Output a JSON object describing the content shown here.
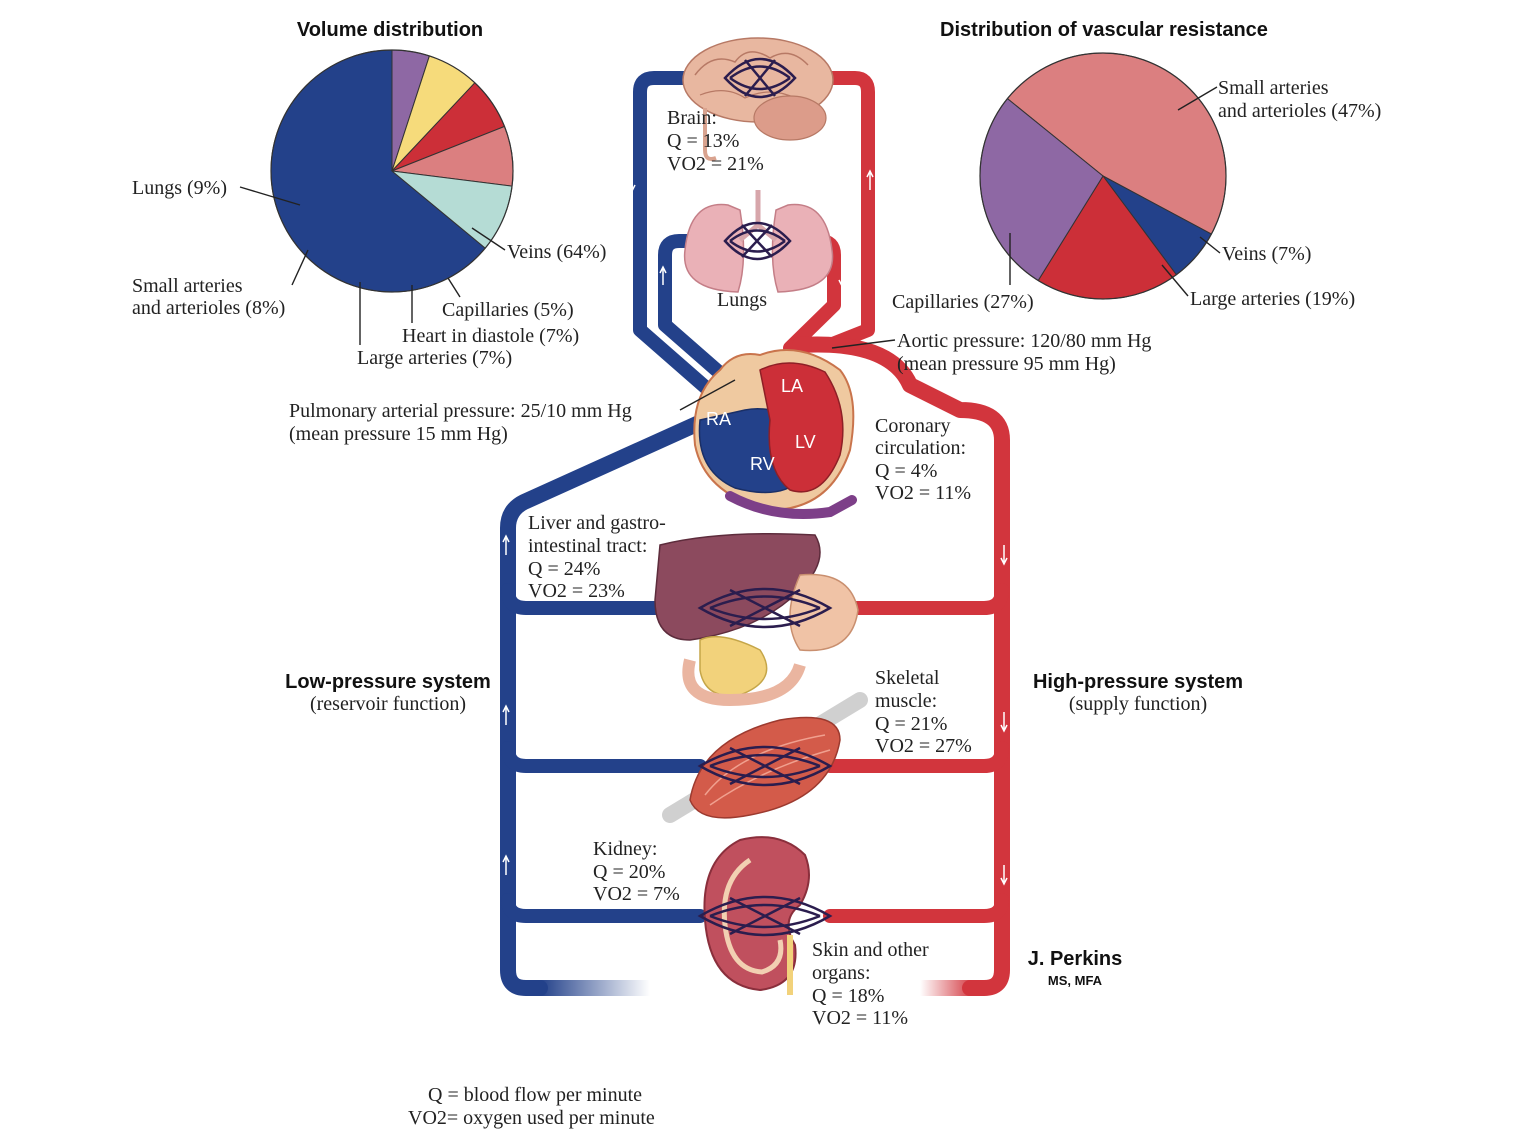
{
  "colors": {
    "vein": "#23418a",
    "artery": "#d2353d",
    "veins_slice": "#23418a",
    "lungs_slice": "#b5dcd5",
    "small_arteries_slice": "#db7f80",
    "large_arteries_slice": "#cc2f38",
    "heart_slice": "#f6db7b",
    "capillaries_slice": "#8e68a4"
  },
  "chart_data": [
    {
      "type": "pie",
      "title": "Volume distribution",
      "slices": [
        {
          "label": "Veins (64%)",
          "value": 64,
          "color": "#23418a"
        },
        {
          "label": "Lungs (9%)",
          "value": 9,
          "color": "#b5dcd5"
        },
        {
          "label": "Small arteries and arterioles (8%)",
          "value": 8,
          "color": "#db7f80"
        },
        {
          "label": "Large arteries (7%)",
          "value": 7,
          "color": "#cc2f38"
        },
        {
          "label": "Heart in diastole (7%)",
          "value": 7,
          "color": "#f6db7b"
        },
        {
          "label": "Capillaries (5%)",
          "value": 5,
          "color": "#8e68a4"
        }
      ]
    },
    {
      "type": "pie",
      "title": "Distribution of vascular resistance",
      "slices": [
        {
          "label": "Small arteries and arterioles (47%)",
          "value": 47,
          "color": "#db7f80"
        },
        {
          "label": "Veins (7%)",
          "value": 7,
          "color": "#23418a"
        },
        {
          "label": "Large arteries (19%)",
          "value": 19,
          "color": "#cc2f38"
        },
        {
          "label": "Capillaries (27%)",
          "value": 27,
          "color": "#8e68a4"
        }
      ]
    }
  ],
  "volume_pie": {
    "title": "Volume distribution",
    "labels": {
      "veins": "Veins  (64%)",
      "lungs": "Lungs (9%)",
      "small_arteries_1": "Small arteries",
      "small_arteries_2": "and arterioles (8%)",
      "capillaries": "Capillaries (5%)",
      "heart": "Heart in diastole (7%)",
      "large_arteries": "Large arteries (7%)"
    }
  },
  "resistance_pie": {
    "title": "Distribution of vascular resistance",
    "labels": {
      "small_arteries_1": "Small arteries",
      "small_arteries_2": "and arterioles (47%)",
      "veins": "Veins (7%)",
      "large_arteries": "Large arteries (19%)",
      "capillaries": "Capillaries (27%)"
    }
  },
  "organs": {
    "brain": {
      "name": "Brain:",
      "q": "Q = 13%",
      "vo2": "VO2 = 21%"
    },
    "lungs": {
      "name": "Lungs"
    },
    "coronary": {
      "name1": "Coronary",
      "name2": "circulation:",
      "q": "Q = 4%",
      "vo2": "VO2 = 11%"
    },
    "liver": {
      "name1": "Liver and gastro-",
      "name2": "intestinal tract:",
      "q": "Q = 24%",
      "vo2": "VO2 = 23%"
    },
    "muscle": {
      "name1": "Skeletal",
      "name2": "muscle:",
      "q": "Q = 21%",
      "vo2": "VO2 = 27%"
    },
    "kidney": {
      "name": "Kidney:",
      "q": "Q = 20%",
      "vo2": "VO2 = 7%"
    },
    "skin": {
      "name1": "Skin and other",
      "name2": "organs:",
      "q": "Q = 18%",
      "vo2": "VO2 = 11%"
    }
  },
  "heart_chambers": {
    "la": "LA",
    "ra": "RA",
    "lv": "LV",
    "rv": "RV"
  },
  "pressures": {
    "aortic_1": "Aortic pressure: 120/80 mm Hg",
    "aortic_2": "(mean pressure 95 mm Hg)",
    "pulmonary_1": "Pulmonary arterial pressure: 25/10 mm Hg",
    "pulmonary_2": "(mean pressure 15 mm Hg)"
  },
  "systems": {
    "low_title": "Low-pressure system",
    "low_sub": "(reservoir function)",
    "high_title": "High-pressure system",
    "high_sub": "(supply function)"
  },
  "signature": {
    "name": "J. Perkins",
    "credentials": "MS, MFA"
  },
  "legend": {
    "q": "Q = blood flow per minute",
    "vo2": "VO2= oxygen used per minute"
  }
}
